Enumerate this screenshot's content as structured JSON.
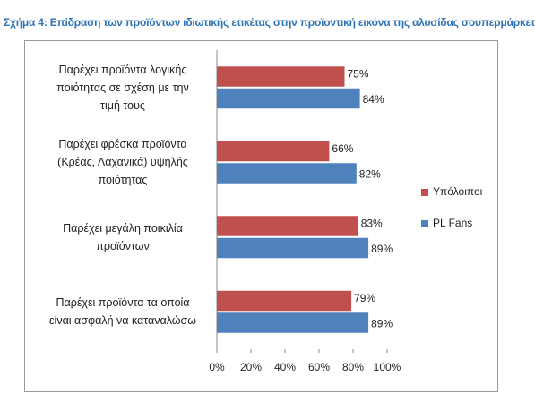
{
  "chart_data": {
    "type": "hbar",
    "title": "Σχήμα 4: Επίδραση των προϊόντων ιδιωτικής ετικέτας στην προϊοντική εικόνα της αλυσίδας σουπερμάρκετ",
    "categories": [
      "Παρέχει προϊόντα λογικής\nποιότητας σε σχέση με την\nτιμή τους",
      "Παρέχει φρέσκα προϊόντα\n(Κρέας, Λαχανικά) υψηλής\nποιότητας",
      "Παρέχει μεγάλη ποικιλία\nπροϊόντων",
      "Παρέχει προϊόντα τα οποία\nείναι ασφαλή να καταναλώσω"
    ],
    "series": [
      {
        "name": "Υπόλοιποι",
        "color": "#c0504d",
        "values": [
          75,
          66,
          83,
          79
        ],
        "value_labels": [
          "75%",
          "66%",
          "83%",
          "79%"
        ]
      },
      {
        "name": "PL Fans",
        "color": "#4f81bd",
        "values": [
          84,
          82,
          89,
          89
        ],
        "value_labels": [
          "84%",
          "82%",
          "89%",
          "89%"
        ]
      }
    ],
    "xlim": [
      0,
      100
    ],
    "xticks": [
      {
        "value": 0,
        "label": "0%"
      },
      {
        "value": 20,
        "label": "20%"
      },
      {
        "value": 40,
        "label": "40%"
      },
      {
        "value": 60,
        "label": "60%"
      },
      {
        "value": 80,
        "label": "80%"
      },
      {
        "value": 100,
        "label": "100%"
      }
    ],
    "legend": "right"
  }
}
